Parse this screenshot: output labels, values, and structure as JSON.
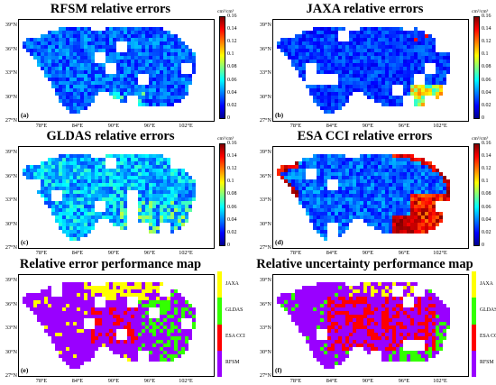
{
  "colors": {
    "JAXA": "#ffff00",
    "GLDAS": "#33ff00",
    "ESA CCI": "#ff0000",
    "RFSM": "#9900ff"
  },
  "axes": {
    "y_ticks": [
      "39°N",
      "36°N",
      "33°N",
      "30°N",
      "27°N"
    ],
    "x_ticks": [
      "78°E",
      "84°E",
      "90°E",
      "96°E",
      "102°E"
    ]
  },
  "colorbar": {
    "unit": "cm³/cm³",
    "ticks": [
      "0.16",
      "0.14",
      "0.12",
      "0.1",
      "0.08",
      "0.06",
      "0.04",
      "0.02",
      "0"
    ]
  },
  "panels": [
    {
      "id": "a",
      "title": "RFSM relative errors",
      "label": "(a)",
      "kind": "rel",
      "scheme": "low"
    },
    {
      "id": "b",
      "title": "JAXA relative errors",
      "label": "(b)",
      "kind": "rel",
      "scheme": "low_south"
    },
    {
      "id": "c",
      "title": "GLDAS relative errors",
      "label": "(c)",
      "kind": "rel",
      "scheme": "mid"
    },
    {
      "id": "d",
      "title": "ESA CCI relative errors",
      "label": "(d)",
      "kind": "rel",
      "scheme": "esa"
    },
    {
      "id": "e",
      "title": "Relative error performance map",
      "label": "(e)",
      "kind": "cat",
      "scheme": "perf_err"
    },
    {
      "id": "f",
      "title": "Relative uncertainty performance map",
      "label": "(f)",
      "kind": "cat",
      "scheme": "perf_unc"
    }
  ],
  "categories": [
    "JAXA",
    "GLDAS",
    "ESA CCI",
    "RFSM"
  ]
}
